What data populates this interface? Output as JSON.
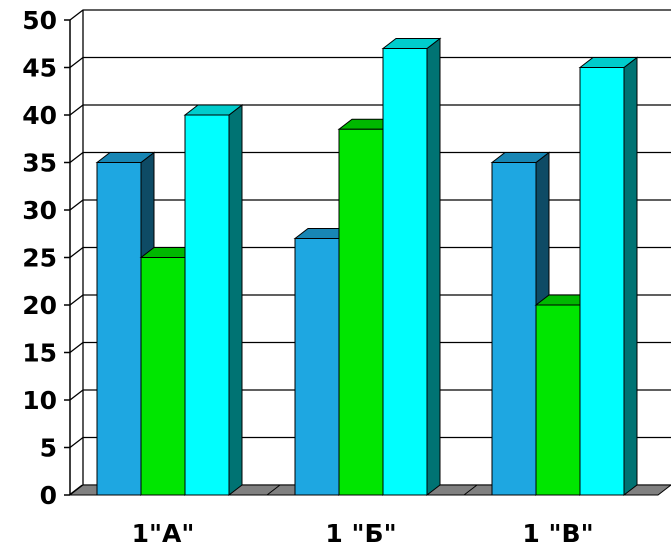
{
  "chart_data": {
    "type": "bar",
    "categories": [
      "1\"А\"",
      "1 \"Б\"",
      "1 \"В\""
    ],
    "series": [
      {
        "values": [
          35,
          27,
          35
        ],
        "color": "#1ea7e1"
      },
      {
        "values": [
          25,
          38.5,
          20
        ],
        "color": "#00e600"
      },
      {
        "values": [
          40,
          47,
          45
        ],
        "color": "#00ffff"
      }
    ],
    "ylim": [
      0,
      50
    ],
    "yticks": [
      "0",
      "5",
      "10",
      "15",
      "20",
      "25",
      "30",
      "35",
      "40",
      "45",
      "50"
    ],
    "grid": true,
    "style": "3d-clustered-column",
    "colors": {
      "floor": "#808080",
      "gridline": "#000000",
      "background": "#ffffff"
    }
  }
}
